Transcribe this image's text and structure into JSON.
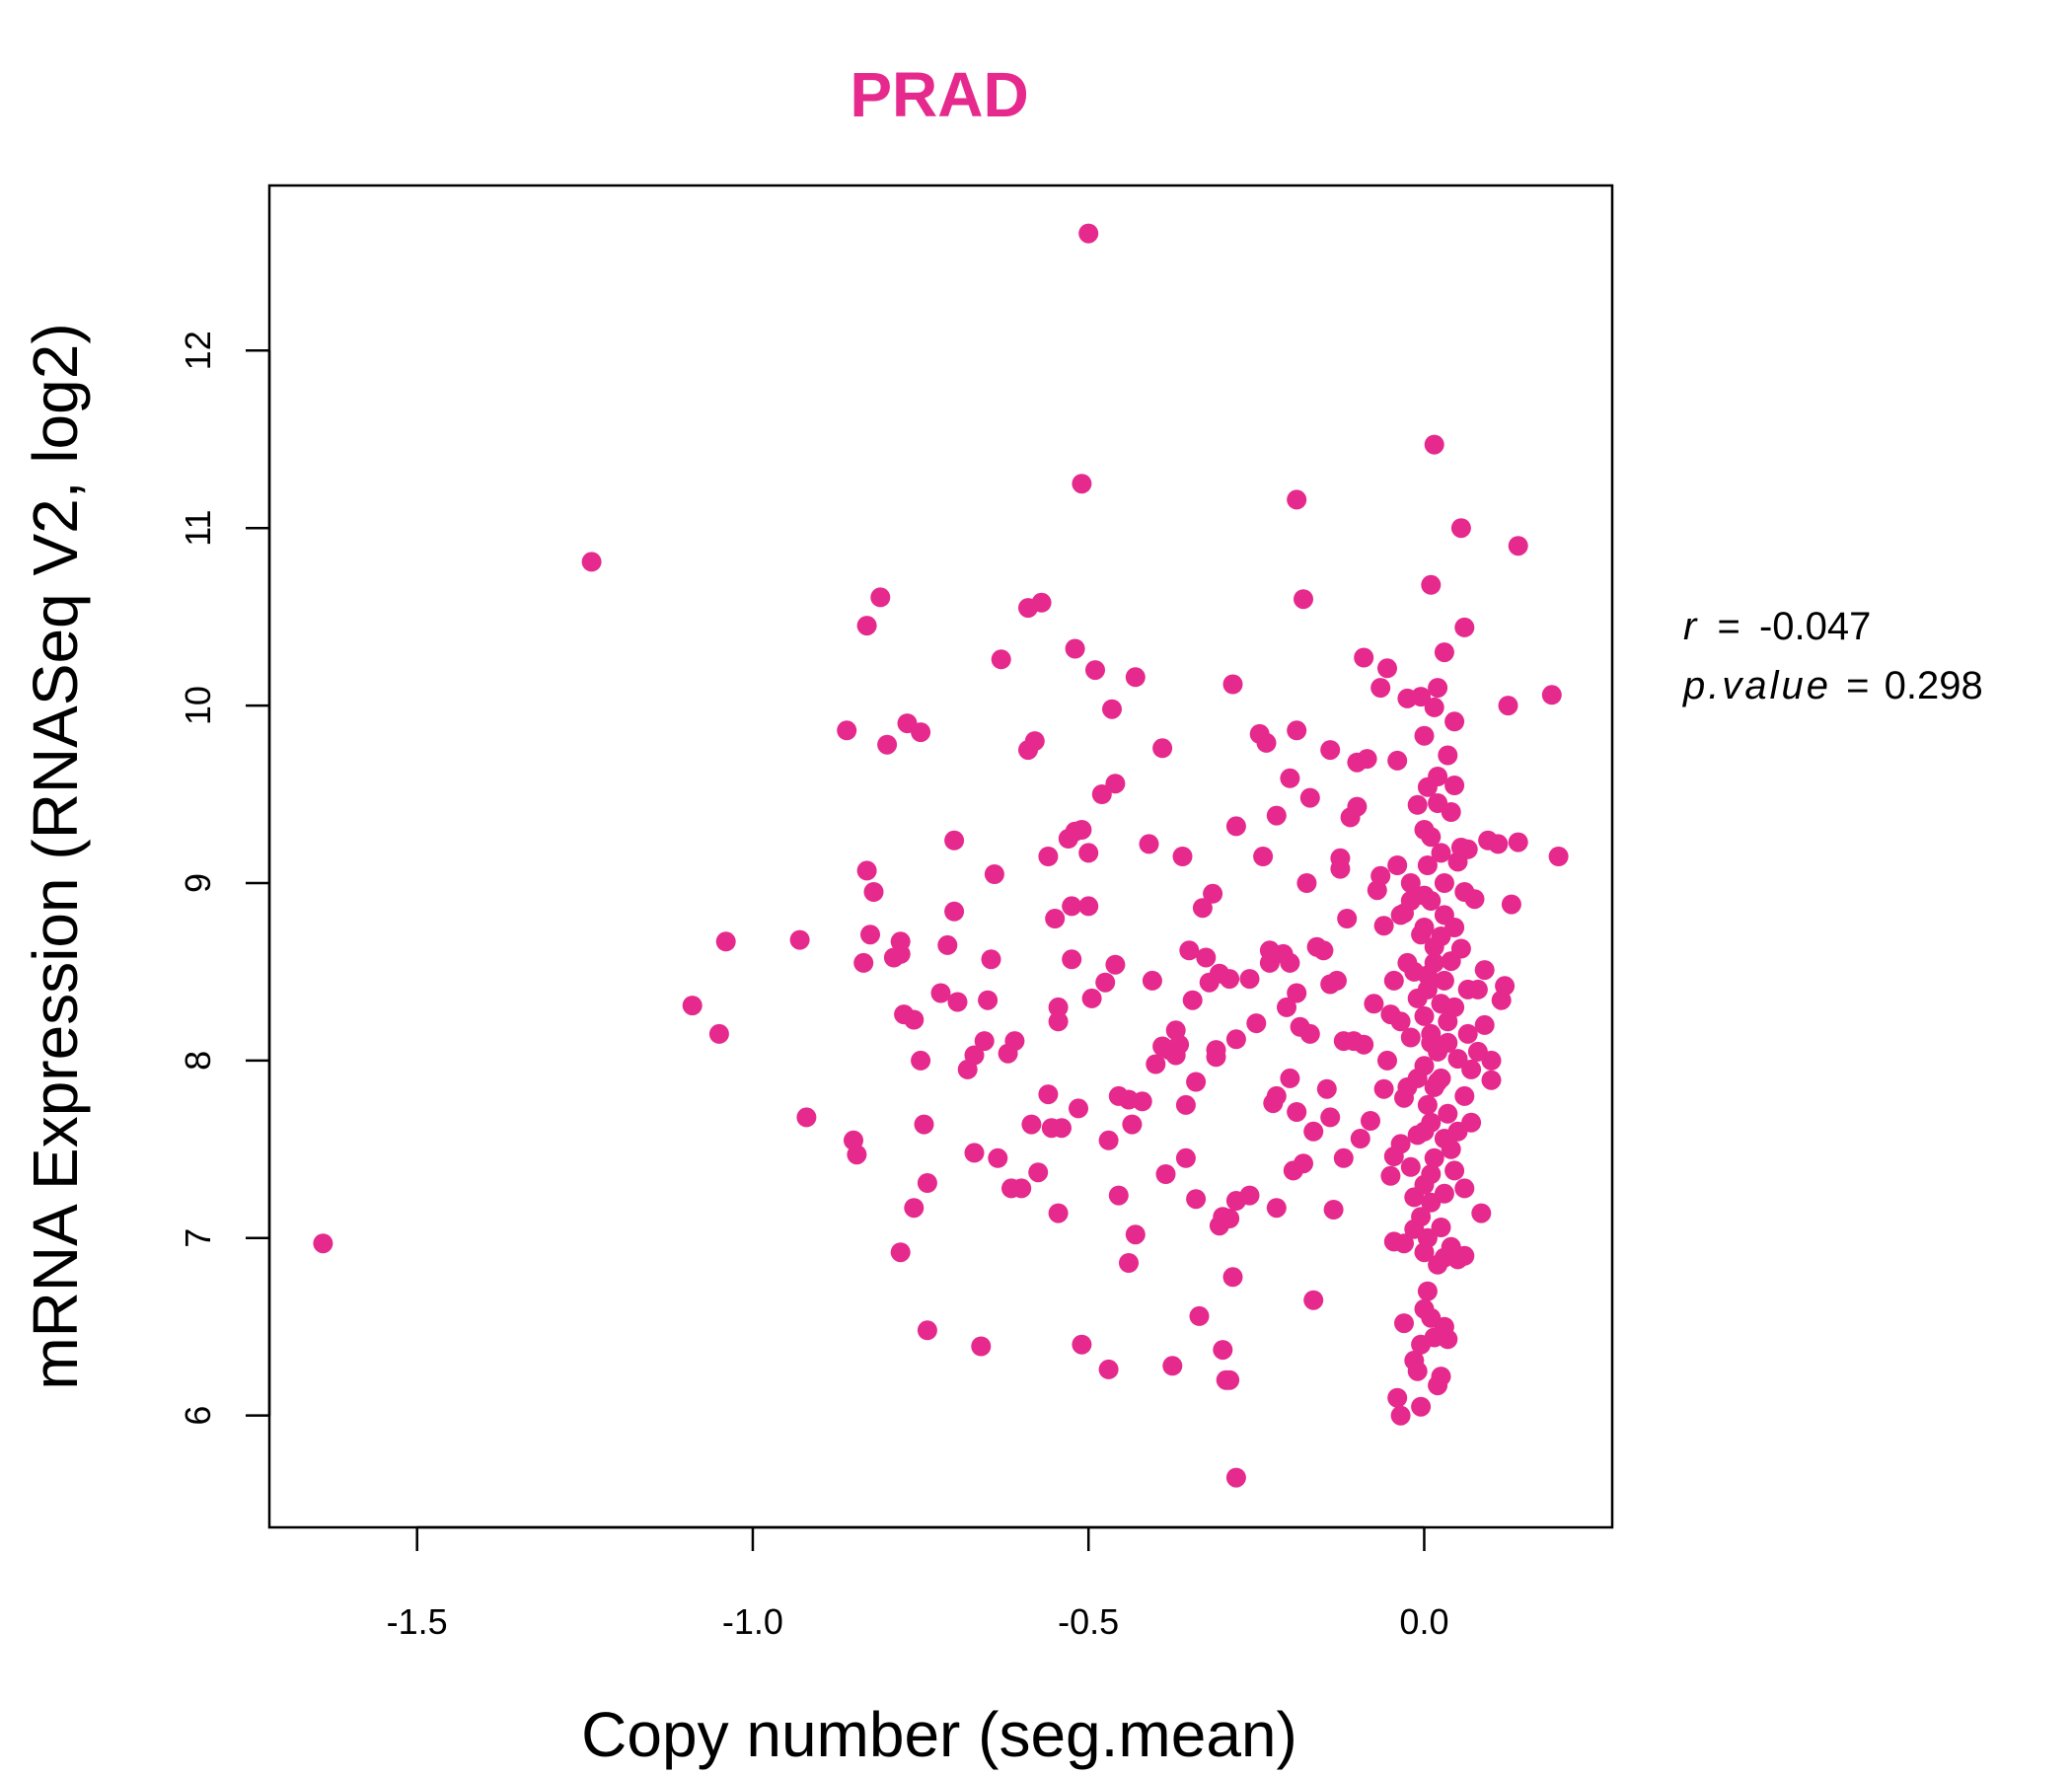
{
  "chart_data": {
    "type": "scatter",
    "title": "PRAD",
    "xlabel": "Copy number (seg.mean)",
    "ylabel": "mRNA Expression (RNASeq V2, log2)",
    "xlim": [
      -1.72,
      0.28
    ],
    "ylim": [
      5.37,
      12.93
    ],
    "x_ticks": [
      -1.5,
      -1.0,
      -0.5,
      0.0
    ],
    "x_tick_labels": [
      "-1.5",
      "-1.0",
      "-0.5",
      "0.0"
    ],
    "y_ticks": [
      6,
      7,
      8,
      9,
      10,
      11,
      12
    ],
    "y_tick_labels": [
      "6",
      "7",
      "8",
      "9",
      "10",
      "11",
      "12"
    ],
    "grid": false,
    "legend": "none",
    "point_color": "#E6298D",
    "title_color": "#E6298D",
    "stats": {
      "r_label": "r",
      "r_value": "-0.047",
      "p_label": "p.value",
      "p_value": "0.298",
      "equals": "="
    },
    "points": [
      [
        -1.64,
        6.97
      ],
      [
        -1.24,
        10.81
      ],
      [
        -1.09,
        8.31
      ],
      [
        -1.05,
        8.15
      ],
      [
        -1.04,
        8.67
      ],
      [
        -0.93,
        8.68
      ],
      [
        -0.92,
        7.68
      ],
      [
        -0.86,
        9.86
      ],
      [
        -0.85,
        7.55
      ],
      [
        -0.845,
        7.47
      ],
      [
        -0.83,
        10.45
      ],
      [
        -0.83,
        9.07
      ],
      [
        -0.825,
        8.71
      ],
      [
        -0.82,
        8.95
      ],
      [
        -0.835,
        8.55
      ],
      [
        -0.81,
        10.61
      ],
      [
        -0.8,
        9.78
      ],
      [
        -0.79,
        8.58
      ],
      [
        -0.78,
        8.67
      ],
      [
        -0.78,
        8.6
      ],
      [
        -0.77,
        9.9
      ],
      [
        -0.775,
        8.26
      ],
      [
        -0.76,
        8.23
      ],
      [
        -0.76,
        7.17
      ],
      [
        -0.75,
        9.85
      ],
      [
        -0.75,
        8.0
      ],
      [
        -0.745,
        7.64
      ],
      [
        -0.74,
        7.31
      ],
      [
        -0.78,
        6.92
      ],
      [
        -0.74,
        6.48
      ],
      [
        -0.72,
        8.38
      ],
      [
        -0.71,
        8.65
      ],
      [
        -0.7,
        9.24
      ],
      [
        -0.7,
        8.84
      ],
      [
        -0.695,
        8.33
      ],
      [
        -0.68,
        7.95
      ],
      [
        -0.67,
        8.03
      ],
      [
        -0.67,
        7.48
      ],
      [
        -0.66,
        6.39
      ],
      [
        -0.655,
        8.11
      ],
      [
        -0.65,
        8.34
      ],
      [
        -0.645,
        8.57
      ],
      [
        -0.64,
        9.05
      ],
      [
        -0.635,
        7.45
      ],
      [
        -0.63,
        10.26
      ],
      [
        -0.62,
        8.04
      ],
      [
        -0.615,
        7.28
      ],
      [
        -0.61,
        8.11
      ],
      [
        -0.6,
        7.28
      ],
      [
        -0.59,
        10.55
      ],
      [
        -0.585,
        7.64
      ],
      [
        -0.59,
        9.75
      ],
      [
        -0.58,
        9.8
      ],
      [
        -0.575,
        7.37
      ],
      [
        -0.57,
        10.58
      ],
      [
        -0.56,
        9.15
      ],
      [
        -0.56,
        7.81
      ],
      [
        -0.555,
        7.62
      ],
      [
        -0.55,
        8.8
      ],
      [
        -0.545,
        8.3
      ],
      [
        -0.545,
        8.22
      ],
      [
        -0.54,
        7.62
      ],
      [
        -0.545,
        7.14
      ],
      [
        -0.53,
        9.25
      ],
      [
        -0.525,
        8.87
      ],
      [
        -0.52,
        10.32
      ],
      [
        -0.525,
        8.57
      ],
      [
        -0.52,
        9.29
      ],
      [
        -0.51,
        9.3
      ],
      [
        -0.515,
        7.73
      ],
      [
        -0.51,
        6.4
      ],
      [
        -0.51,
        11.25
      ],
      [
        -0.5,
        12.66
      ],
      [
        -0.5,
        9.17
      ],
      [
        -0.5,
        8.87
      ],
      [
        -0.495,
        8.35
      ],
      [
        -0.49,
        10.2
      ],
      [
        -0.48,
        9.5
      ],
      [
        -0.475,
        8.44
      ],
      [
        -0.47,
        7.55
      ],
      [
        -0.47,
        6.26
      ],
      [
        -0.465,
        9.98
      ],
      [
        -0.46,
        9.56
      ],
      [
        -0.46,
        8.54
      ],
      [
        -0.455,
        7.8
      ],
      [
        -0.455,
        7.24
      ],
      [
        -0.44,
        7.78
      ],
      [
        -0.44,
        6.86
      ],
      [
        -0.435,
        7.64
      ],
      [
        -0.43,
        10.16
      ],
      [
        -0.43,
        7.02
      ],
      [
        -0.42,
        7.77
      ],
      [
        -0.41,
        9.22
      ],
      [
        -0.405,
        8.45
      ],
      [
        -0.4,
        7.98
      ],
      [
        -0.39,
        8.08
      ],
      [
        -0.39,
        9.76
      ],
      [
        -0.385,
        7.36
      ],
      [
        -0.38,
        8.06
      ],
      [
        -0.375,
        6.28
      ],
      [
        -0.37,
        8.17
      ],
      [
        -0.37,
        8.03
      ],
      [
        -0.365,
        8.09
      ],
      [
        -0.36,
        9.15
      ],
      [
        -0.355,
        7.45
      ],
      [
        -0.355,
        7.75
      ],
      [
        -0.35,
        8.62
      ],
      [
        -0.345,
        8.34
      ],
      [
        -0.34,
        7.88
      ],
      [
        -0.34,
        7.22
      ],
      [
        -0.335,
        6.56
      ],
      [
        -0.33,
        8.86
      ],
      [
        -0.325,
        8.58
      ],
      [
        -0.32,
        8.44
      ],
      [
        -0.315,
        8.94
      ],
      [
        -0.31,
        8.06
      ],
      [
        -0.31,
        8.02
      ],
      [
        -0.305,
        8.49
      ],
      [
        -0.305,
        7.07
      ],
      [
        -0.3,
        7.12
      ],
      [
        -0.3,
        6.37
      ],
      [
        -0.295,
        6.2
      ],
      [
        -0.29,
        8.46
      ],
      [
        -0.29,
        7.11
      ],
      [
        -0.29,
        6.2
      ],
      [
        -0.285,
        10.12
      ],
      [
        -0.285,
        6.78
      ],
      [
        -0.28,
        9.32
      ],
      [
        -0.28,
        8.12
      ],
      [
        -0.28,
        7.21
      ],
      [
        -0.28,
        5.65
      ],
      [
        -0.26,
        8.46
      ],
      [
        -0.26,
        7.24
      ],
      [
        -0.25,
        8.21
      ],
      [
        -0.245,
        9.84
      ],
      [
        -0.24,
        9.15
      ],
      [
        -0.235,
        9.79
      ],
      [
        -0.23,
        8.62
      ],
      [
        -0.23,
        8.55
      ],
      [
        -0.225,
        7.76
      ],
      [
        -0.22,
        9.38
      ],
      [
        -0.22,
        7.8
      ],
      [
        -0.22,
        7.17
      ],
      [
        -0.21,
        8.6
      ],
      [
        -0.205,
        8.3
      ],
      [
        -0.2,
        9.59
      ],
      [
        -0.2,
        8.55
      ],
      [
        -0.2,
        7.9
      ],
      [
        -0.195,
        7.38
      ],
      [
        -0.19,
        11.16
      ],
      [
        -0.19,
        9.86
      ],
      [
        -0.19,
        8.38
      ],
      [
        -0.19,
        7.71
      ],
      [
        -0.185,
        8.19
      ],
      [
        -0.18,
        10.6
      ],
      [
        -0.18,
        7.42
      ],
      [
        -0.175,
        9.0
      ],
      [
        -0.17,
        9.48
      ],
      [
        -0.17,
        8.15
      ],
      [
        -0.165,
        6.65
      ],
      [
        -0.165,
        7.6
      ],
      [
        -0.16,
        8.64
      ],
      [
        -0.15,
        8.62
      ],
      [
        -0.145,
        7.84
      ],
      [
        -0.14,
        9.75
      ],
      [
        -0.14,
        8.43
      ],
      [
        -0.14,
        7.68
      ],
      [
        -0.135,
        7.16
      ],
      [
        -0.13,
        8.45
      ],
      [
        -0.125,
        9.14
      ],
      [
        -0.125,
        9.08
      ],
      [
        -0.12,
        8.11
      ],
      [
        -0.12,
        7.45
      ],
      [
        -0.115,
        8.8
      ],
      [
        -0.11,
        9.37
      ],
      [
        -0.105,
        8.11
      ],
      [
        -0.1,
        9.68
      ],
      [
        -0.1,
        9.43
      ],
      [
        -0.095,
        7.56
      ],
      [
        -0.09,
        10.27
      ],
      [
        -0.09,
        8.09
      ],
      [
        -0.085,
        9.7
      ],
      [
        -0.08,
        7.66
      ],
      [
        -0.075,
        8.32
      ],
      [
        -0.07,
        8.96
      ],
      [
        -0.065,
        10.1
      ],
      [
        -0.065,
        9.04
      ],
      [
        -0.06,
        8.76
      ],
      [
        -0.06,
        7.84
      ],
      [
        -0.055,
        10.21
      ],
      [
        -0.055,
        8.0
      ],
      [
        -0.05,
        8.26
      ],
      [
        -0.045,
        7.46
      ],
      [
        -0.04,
        9.69
      ],
      [
        -0.04,
        9.1
      ],
      [
        -0.035,
        8.82
      ],
      [
        -0.035,
        8.22
      ],
      [
        -0.035,
        7.53
      ],
      [
        -0.035,
        6.0
      ],
      [
        -0.03,
        8.83
      ],
      [
        -0.03,
        7.79
      ],
      [
        -0.03,
        6.52
      ],
      [
        -0.025,
        10.04
      ],
      [
        -0.025,
        7.85
      ],
      [
        -0.02,
        8.9
      ],
      [
        -0.02,
        8.13
      ],
      [
        -0.015,
        7.23
      ],
      [
        -0.015,
        6.31
      ],
      [
        -0.01,
        9.44
      ],
      [
        -0.01,
        8.35
      ],
      [
        -0.01,
        7.58
      ],
      [
        -0.005,
        10.05
      ],
      [
        -0.005,
        8.71
      ],
      [
        -0.005,
        7.12
      ],
      [
        0.0,
        9.83
      ],
      [
        0.0,
        8.93
      ],
      [
        0.0,
        7.97
      ],
      [
        0.0,
        6.92
      ],
      [
        0.005,
        9.54
      ],
      [
        0.005,
        8.48
      ],
      [
        0.005,
        6.7
      ],
      [
        0.01,
        10.68
      ],
      [
        0.01,
        9.26
      ],
      [
        0.01,
        8.1
      ],
      [
        0.01,
        7.36
      ],
      [
        0.015,
        11.47
      ],
      [
        0.015,
        9.99
      ],
      [
        0.015,
        8.64
      ],
      [
        0.015,
        6.44
      ],
      [
        0.02,
        9.6
      ],
      [
        0.02,
        7.88
      ],
      [
        0.02,
        6.17
      ],
      [
        0.025,
        9.17
      ],
      [
        0.025,
        8.32
      ],
      [
        0.025,
        7.06
      ],
      [
        0.03,
        10.3
      ],
      [
        0.03,
        8.82
      ],
      [
        0.03,
        7.56
      ],
      [
        0.03,
        6.89
      ],
      [
        0.035,
        9.72
      ],
      [
        0.035,
        8.22
      ],
      [
        0.035,
        6.43
      ],
      [
        0.04,
        9.4
      ],
      [
        0.04,
        8.56
      ],
      [
        0.045,
        9.91
      ],
      [
        0.045,
        7.38
      ],
      [
        0.05,
        9.12
      ],
      [
        0.05,
        8.01
      ],
      [
        0.055,
        11.0
      ],
      [
        0.055,
        8.63
      ],
      [
        0.06,
        10.44
      ],
      [
        0.06,
        7.28
      ],
      [
        0.065,
        9.19
      ],
      [
        0.065,
        8.4
      ],
      [
        0.07,
        7.95
      ],
      [
        0.075,
        8.91
      ],
      [
        0.08,
        8.05
      ],
      [
        0.085,
        7.14
      ],
      [
        0.09,
        8.51
      ],
      [
        0.095,
        9.24
      ],
      [
        0.1,
        8.0
      ],
      [
        0.1,
        7.89
      ],
      [
        0.11,
        9.22
      ],
      [
        0.115,
        8.34
      ],
      [
        0.12,
        8.42
      ],
      [
        0.125,
        10.0
      ],
      [
        0.13,
        8.88
      ],
      [
        0.14,
        10.9
      ],
      [
        0.14,
        9.23
      ],
      [
        0.19,
        10.06
      ],
      [
        0.2,
        9.15
      ],
      [
        0.0,
        9.3
      ],
      [
        0.005,
        9.1
      ],
      [
        0.01,
        8.9
      ],
      [
        0.0,
        8.75
      ],
      [
        0.015,
        8.55
      ],
      [
        0.005,
        8.4
      ],
      [
        0.0,
        8.25
      ],
      [
        0.01,
        8.15
      ],
      [
        0.005,
        7.75
      ],
      [
        0.0,
        7.6
      ],
      [
        0.015,
        7.45
      ],
      [
        0.0,
        7.3
      ],
      [
        0.01,
        7.2
      ],
      [
        0.005,
        7.0
      ],
      [
        0.02,
        6.85
      ],
      [
        0.0,
        6.6
      ],
      [
        0.01,
        6.55
      ],
      [
        0.025,
        6.22
      ],
      [
        -0.005,
        6.05
      ],
      [
        -0.01,
        6.25
      ],
      [
        0.03,
        6.5
      ],
      [
        0.02,
        9.45
      ],
      [
        0.03,
        9.0
      ],
      [
        0.025,
        8.7
      ],
      [
        0.03,
        8.45
      ],
      [
        0.035,
        8.1
      ],
      [
        0.025,
        7.9
      ],
      [
        0.035,
        7.7
      ],
      [
        0.04,
        7.5
      ],
      [
        0.03,
        7.25
      ],
      [
        0.04,
        6.95
      ],
      [
        0.045,
        8.75
      ],
      [
        0.045,
        8.3
      ],
      [
        0.05,
        7.6
      ],
      [
        0.055,
        9.2
      ],
      [
        0.06,
        8.95
      ],
      [
        0.06,
        7.8
      ],
      [
        0.065,
        8.15
      ],
      [
        0.07,
        7.65
      ],
      [
        0.045,
        9.55
      ],
      [
        0.05,
        6.9
      ],
      [
        0.02,
        10.1
      ],
      [
        -0.015,
        8.5
      ],
      [
        -0.02,
        9.0
      ],
      [
        -0.025,
        8.55
      ],
      [
        -0.01,
        7.9
      ],
      [
        -0.02,
        7.4
      ],
      [
        -0.015,
        7.05
      ],
      [
        -0.03,
        6.97
      ],
      [
        -0.005,
        6.4
      ],
      [
        -0.04,
        6.1
      ],
      [
        -0.045,
        8.45
      ],
      [
        -0.05,
        7.35
      ],
      [
        -0.045,
        6.98
      ],
      [
        0.08,
        8.4
      ],
      [
        0.09,
        8.2
      ],
      [
        0.05,
        6.88
      ],
      [
        0.06,
        6.9
      ],
      [
        0.015,
        7.85
      ],
      [
        0.02,
        8.05
      ],
      [
        0.01,
        7.65
      ]
    ]
  }
}
